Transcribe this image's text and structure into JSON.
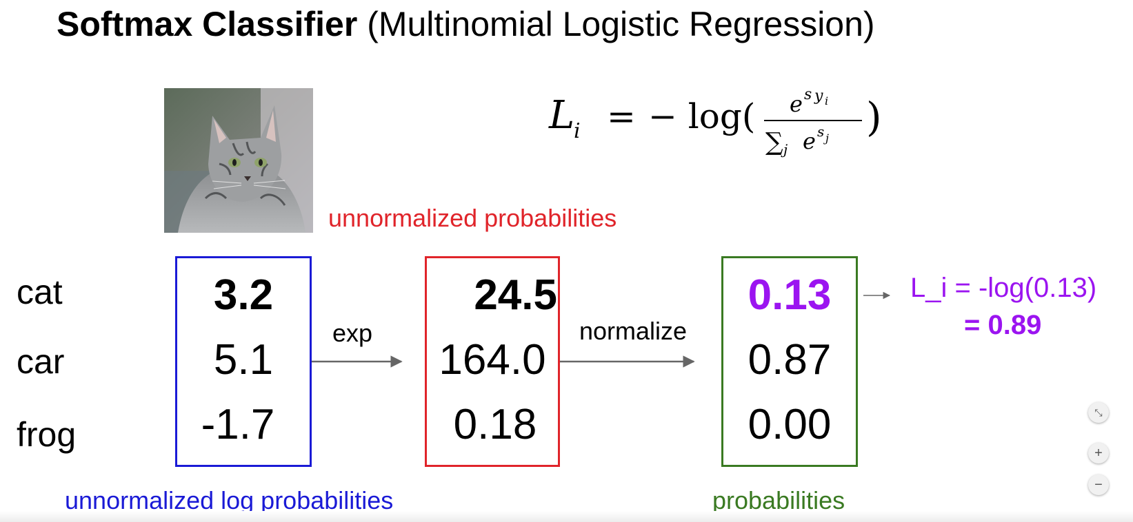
{
  "title": {
    "bold": "Softmax Classifier",
    "rest": "(Multinomial Logistic Regression)"
  },
  "formula": {
    "lhs": "L",
    "lhs_sub": "i",
    "eq": "=",
    "neg_log": "− log(",
    "num_base": "e",
    "num_exp": "s",
    "num_exp_sub": "y",
    "num_exp_sub2": "i",
    "den_sum": "∑",
    "den_sub": "j",
    "den_base": "e",
    "den_exp": "s",
    "den_exp_sub": "j",
    "close": ")"
  },
  "classes": [
    "cat",
    "car",
    "frog"
  ],
  "scores": [
    "3.2",
    "5.1",
    "-1.7"
  ],
  "exp_values": [
    "24.5",
    "164.0",
    "0.18"
  ],
  "probabilities": [
    "0.13",
    "0.87",
    "0.00"
  ],
  "labels": {
    "unnormalized_probabilities": "unnormalized probabilities",
    "unnormalized_log_probabilities": "unnormalized log probabilities",
    "probabilities": "probabilities",
    "exp": "exp",
    "normalize": "normalize"
  },
  "loss": {
    "line1": "L_i = -log(0.13)",
    "line2_prefix": "= ",
    "line2_value": "0.89"
  },
  "zoom_controls": {
    "fit": "⤡",
    "zoom_in": "+",
    "zoom_out": "−"
  },
  "colors": {
    "blue": "#1a1ad6",
    "red": "#e0242a",
    "green": "#3a7a22",
    "purple": "#9b14f0",
    "arrow": "#666666"
  },
  "icons": {
    "photo": "cat-photo",
    "fit": "fit-screen-icon",
    "zoom_in": "zoom-in-icon",
    "zoom_out": "zoom-out-icon"
  }
}
